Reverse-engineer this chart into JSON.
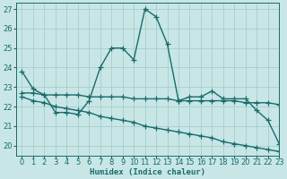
{
  "title": "",
  "xlabel": "Humidex (Indice chaleur)",
  "ylabel": "",
  "xlim": [
    -0.5,
    23
  ],
  "ylim": [
    19.5,
    27.3
  ],
  "yticks": [
    20,
    21,
    22,
    23,
    24,
    25,
    26,
    27
  ],
  "ytick_labels": [
    "20",
    "21",
    "22",
    "23",
    "24",
    "25",
    "26",
    "27"
  ],
  "xticks": [
    0,
    1,
    2,
    3,
    4,
    5,
    6,
    7,
    8,
    9,
    10,
    11,
    12,
    13,
    14,
    15,
    16,
    17,
    18,
    19,
    20,
    21,
    22,
    23
  ],
  "bg_color": "#c8e6e6",
  "grid_color": "#a0c8c8",
  "line_color": "#1a6b6b",
  "line_width": 1.0,
  "marker": "+",
  "markersize": 4,
  "series": [
    {
      "x": [
        0,
        1,
        2,
        3,
        4,
        5,
        6,
        7,
        8,
        9,
        10,
        11,
        12,
        13,
        14,
        15,
        16,
        17,
        18,
        19,
        20,
        21,
        22,
        23
      ],
      "y": [
        23.8,
        22.9,
        22.6,
        21.7,
        21.7,
        21.6,
        22.3,
        24.0,
        25.0,
        25.0,
        24.4,
        27.0,
        26.6,
        25.2,
        22.3,
        22.5,
        22.5,
        22.8,
        22.4,
        22.4,
        22.4,
        21.8,
        21.3,
        20.1
      ]
    },
    {
      "x": [
        0,
        1,
        2,
        3,
        4,
        5,
        6,
        7,
        8,
        9,
        10,
        11,
        12,
        13,
        14,
        15,
        16,
        17,
        18,
        19,
        20,
        21,
        22,
        23
      ],
      "y": [
        22.7,
        22.7,
        22.6,
        22.6,
        22.6,
        22.6,
        22.5,
        22.5,
        22.5,
        22.5,
        22.4,
        22.4,
        22.4,
        22.4,
        22.3,
        22.3,
        22.3,
        22.3,
        22.3,
        22.3,
        22.2,
        22.2,
        22.2,
        22.1
      ]
    },
    {
      "x": [
        0,
        1,
        2,
        3,
        4,
        5,
        6,
        7,
        8,
        9,
        10,
        11,
        12,
        13,
        14,
        15,
        16,
        17,
        18,
        19,
        20,
        21,
        22,
        23
      ],
      "y": [
        22.5,
        22.3,
        22.2,
        22.0,
        21.9,
        21.8,
        21.7,
        21.5,
        21.4,
        21.3,
        21.2,
        21.0,
        20.9,
        20.8,
        20.7,
        20.6,
        20.5,
        20.4,
        20.2,
        20.1,
        20.0,
        19.9,
        19.8,
        19.7
      ]
    }
  ]
}
